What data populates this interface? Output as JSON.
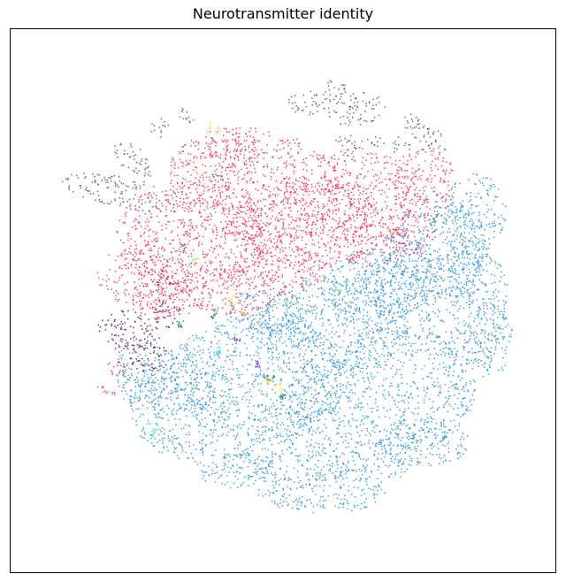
{
  "chart_data": {
    "type": "scatter",
    "title": "Neurotransmitter identity",
    "xlabel": "",
    "ylabel": "",
    "axis_ticks": false,
    "grid": false,
    "legend": "none",
    "colors": {
      "glutamatergic": "#ff2d55",
      "gabaergic": "#2c96e0",
      "non_neuronal": "#5f5f5f",
      "dopaminergic": "#7d0a52",
      "serotonergic": "#f2e03a",
      "cholinergic": "#118a4e",
      "glycinergic": "#7ee37a",
      "noradrenergic": "#19d3e6",
      "histaminergic": "#ff8c1a",
      "other": "#7a3fd0"
    },
    "series": [
      {
        "color_key": "non_neuronal",
        "regions": [
          [
            -0.62,
            -0.42,
            0.25,
            0.06,
            0.2
          ],
          [
            -0.62,
            0.24,
            0.03,
            0.1,
            0.0
          ],
          [
            -0.4,
            -0.2,
            0.02,
            0.03,
            0.5
          ],
          [
            -0.25,
            -0.48,
            0.04,
            0.03,
            0.0
          ],
          [
            0.1,
            -0.77,
            0.08,
            0.05,
            0.1
          ],
          [
            0.28,
            -0.75,
            0.12,
            0.07,
            0.0
          ],
          [
            0.2,
            -0.82,
            0.05,
            0.04,
            0.0
          ],
          [
            0.55,
            -0.65,
            0.08,
            0.04,
            0.2
          ],
          [
            0.3,
            -0.62,
            0.1,
            0.03,
            0.0
          ],
          [
            -0.58,
            -0.55,
            0.1,
            0.05,
            0.6
          ],
          [
            -0.48,
            -0.67,
            0.04,
            0.04,
            0.0
          ],
          [
            -0.38,
            -0.72,
            0.04,
            0.03,
            0.3
          ],
          [
            0.5,
            -0.7,
            0.03,
            0.03,
            0.0
          ],
          [
            0.46,
            -0.6,
            0.04,
            0.04,
            0.0
          ],
          [
            0.6,
            -0.6,
            0.04,
            0.03,
            0.0
          ]
        ]
      },
      {
        "color_key": "glutamatergic",
        "regions": [
          [
            -0.35,
            -0.25,
            0.3,
            0.22,
            0.0
          ],
          [
            -0.1,
            -0.45,
            0.35,
            0.22,
            0.2
          ],
          [
            0.1,
            -0.3,
            0.3,
            0.18,
            0.0
          ],
          [
            0.35,
            -0.45,
            0.2,
            0.14,
            0.4
          ],
          [
            0.55,
            -0.45,
            0.12,
            0.15,
            0.3
          ],
          [
            0.35,
            -0.25,
            0.15,
            0.12,
            0.0
          ],
          [
            -0.55,
            -0.1,
            0.18,
            0.12,
            0.0
          ],
          [
            -0.2,
            -0.05,
            0.2,
            0.1,
            0.0
          ],
          [
            0.0,
            -0.12,
            0.18,
            0.1,
            0.0
          ],
          [
            -0.45,
            0.0,
            0.15,
            0.08,
            0.0
          ],
          [
            -0.2,
            -0.58,
            0.12,
            0.08,
            0.0
          ],
          [
            0.5,
            -0.25,
            0.1,
            0.08,
            0.0
          ]
        ]
      },
      {
        "color_key": "gabaergic",
        "regions": [
          [
            0.45,
            0.35,
            0.3,
            0.25,
            0.0
          ],
          [
            0.2,
            0.1,
            0.3,
            0.2,
            0.0
          ],
          [
            -0.1,
            0.3,
            0.35,
            0.25,
            0.0
          ],
          [
            -0.4,
            0.4,
            0.2,
            0.22,
            0.0
          ],
          [
            0.05,
            0.6,
            0.25,
            0.12,
            0.0
          ],
          [
            0.7,
            0.0,
            0.18,
            0.25,
            0.0
          ],
          [
            0.6,
            -0.2,
            0.2,
            0.2,
            0.0
          ],
          [
            0.75,
            -0.35,
            0.12,
            0.15,
            0.0
          ],
          [
            0.35,
            -0.05,
            0.2,
            0.15,
            0.0
          ],
          [
            -0.2,
            0.65,
            0.15,
            0.08,
            0.0
          ],
          [
            0.15,
            0.75,
            0.25,
            0.08,
            0.0
          ],
          [
            0.8,
            0.15,
            0.1,
            0.15,
            0.0
          ],
          [
            -0.55,
            0.28,
            0.1,
            0.15,
            0.0
          ],
          [
            0.55,
            0.55,
            0.18,
            0.1,
            0.0
          ],
          [
            0.45,
            -0.1,
            0.15,
            0.15,
            0.0
          ],
          [
            -0.05,
            0.05,
            0.18,
            0.1,
            0.0
          ],
          [
            0.1,
            0.4,
            0.12,
            0.1,
            0.0
          ],
          [
            0.35,
            0.65,
            0.15,
            0.06,
            0.0
          ]
        ]
      },
      {
        "color_key": "dopaminergic",
        "regions": [
          [
            -0.6,
            0.12,
            0.13,
            0.08,
            0.2
          ],
          [
            -0.52,
            0.22,
            0.08,
            0.06,
            0.0
          ],
          [
            -0.45,
            0.05,
            0.06,
            0.06,
            0.0
          ],
          [
            -0.47,
            -0.07,
            0.03,
            0.05,
            0.0
          ]
        ]
      },
      {
        "color_key": "glutamatergic",
        "regions": [
          [
            -0.65,
            0.26,
            0.04,
            0.03,
            0.0
          ],
          [
            -0.7,
            0.35,
            0.05,
            0.015,
            0.3
          ]
        ]
      },
      {
        "color_key": "serotonergic",
        "regions": [
          [
            -0.27,
            -0.67,
            0.03,
            0.03,
            0.0
          ],
          [
            -0.06,
            0.31,
            0.02,
            0.01,
            0.0
          ],
          [
            -0.03,
            0.34,
            0.03,
            0.02,
            0.4
          ],
          [
            -0.2,
            0.0,
            0.02,
            0.02,
            0.0
          ]
        ]
      },
      {
        "color_key": "cholinergic",
        "regions": [
          [
            0.59,
            -0.3,
            0.02,
            0.03,
            0.0
          ],
          [
            -0.27,
            0.05,
            0.02,
            0.02,
            0.0
          ],
          [
            -0.05,
            0.3,
            0.02,
            0.01,
            0.0
          ],
          [
            -0.4,
            0.09,
            0.02,
            0.015,
            0.0
          ],
          [
            0.0,
            0.38,
            0.015,
            0.015,
            0.0
          ]
        ]
      },
      {
        "color_key": "glycinergic",
        "regions": [
          [
            0.22,
            -0.05,
            0.05,
            0.015,
            -0.6
          ],
          [
            -0.35,
            -0.15,
            0.03,
            0.01,
            -0.7
          ]
        ]
      },
      {
        "color_key": "noradrenergic",
        "regions": [
          [
            -0.5,
            0.5,
            0.01,
            0.04,
            0.3
          ],
          [
            -0.25,
            0.2,
            0.01,
            0.02,
            0.0
          ]
        ]
      },
      {
        "color_key": "histaminergic",
        "regions": [
          [
            -0.15,
            0.05,
            0.015,
            0.01,
            0.0
          ]
        ]
      },
      {
        "color_key": "other",
        "regions": [
          [
            -0.18,
            0.15,
            0.015,
            0.02,
            0.0
          ],
          [
            -0.1,
            0.25,
            0.01,
            0.015,
            0.0
          ]
        ]
      }
    ],
    "note_regions": "regions are [cx, cy, rx, ry, rotation] in embedding data units; the plotting script scatters points within each"
  }
}
